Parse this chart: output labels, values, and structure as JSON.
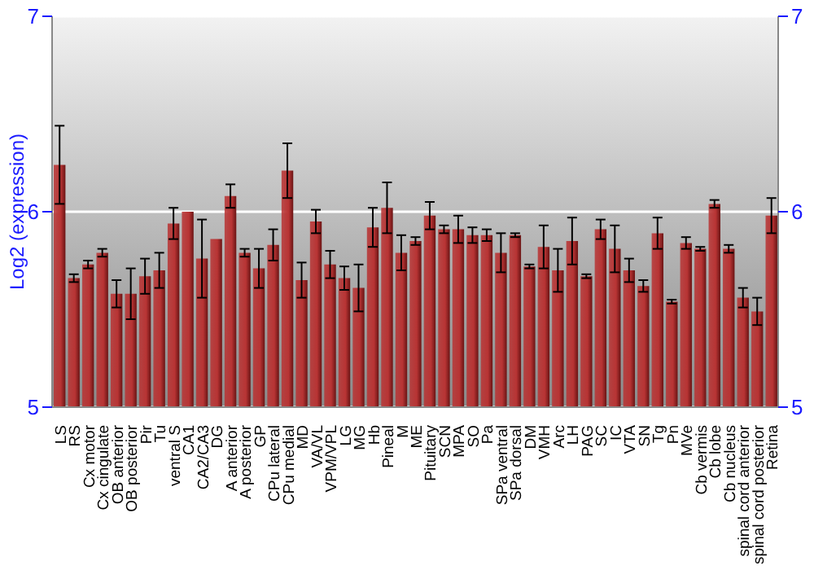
{
  "chart_data": {
    "type": "bar",
    "ylabel": "Log2 (expression)",
    "categories": [
      "LS",
      "RS",
      "Cx motor",
      "Cx cingulate",
      "OB anterior",
      "OB posterior",
      "Pir",
      "Tu",
      "ventral S",
      "CA1",
      "CA2/CA3",
      "DG",
      "A anterior",
      "A posterior",
      "GP",
      "CPu lateral",
      "CPu medial",
      "MD",
      "VA/VL",
      "VPM/VPL",
      "LG",
      "MG",
      "Hb",
      "Pineal",
      "M",
      "ME",
      "Pituitary",
      "SCN",
      "MPA",
      "SO",
      "Pa",
      "SPa ventral",
      "SPa dorsal",
      "DM",
      "VMH",
      "Arc",
      "LH",
      "PAG",
      "SC",
      "IC",
      "VTA",
      "SN",
      "Tg",
      "Pn",
      "MVe",
      "Cb vermis",
      "Cb lobe",
      "Cb nucleus",
      "spinal cord anterior",
      "spinal cord posterior",
      "Retina"
    ],
    "values": [
      6.24,
      5.66,
      5.73,
      5.79,
      5.58,
      5.58,
      5.67,
      5.7,
      5.94,
      6.0,
      5.76,
      5.86,
      6.08,
      5.79,
      5.71,
      5.83,
      6.21,
      5.65,
      5.95,
      5.73,
      5.66,
      5.61,
      5.92,
      6.02,
      5.79,
      5.85,
      5.98,
      5.91,
      5.91,
      5.88,
      5.88,
      5.79,
      5.88,
      5.72,
      5.82,
      5.7,
      5.85,
      5.67,
      5.91,
      5.81,
      5.7,
      5.62,
      5.89,
      5.54,
      5.84,
      5.81,
      6.04,
      5.81,
      5.56,
      5.49,
      5.98
    ],
    "errors": [
      0.2,
      0.02,
      0.02,
      0.02,
      0.07,
      0.13,
      0.09,
      0.09,
      0.08,
      null,
      0.2,
      null,
      0.06,
      0.02,
      0.1,
      0.08,
      0.14,
      0.09,
      0.06,
      0.07,
      0.06,
      0.12,
      0.1,
      0.13,
      0.09,
      0.02,
      0.07,
      0.02,
      0.07,
      0.04,
      0.03,
      0.1,
      0.01,
      0.01,
      0.11,
      0.11,
      0.12,
      0.01,
      0.05,
      0.12,
      0.06,
      0.03,
      0.08,
      0.01,
      0.03,
      0.01,
      0.02,
      0.02,
      0.05,
      0.07,
      0.09
    ],
    "color": "#b83434",
    "ylim": [
      5,
      7
    ],
    "yticks": [
      5,
      6,
      7
    ],
    "y2lim": [
      5,
      7
    ],
    "y2ticks": [
      5,
      6,
      7
    ],
    "grid": "y"
  }
}
